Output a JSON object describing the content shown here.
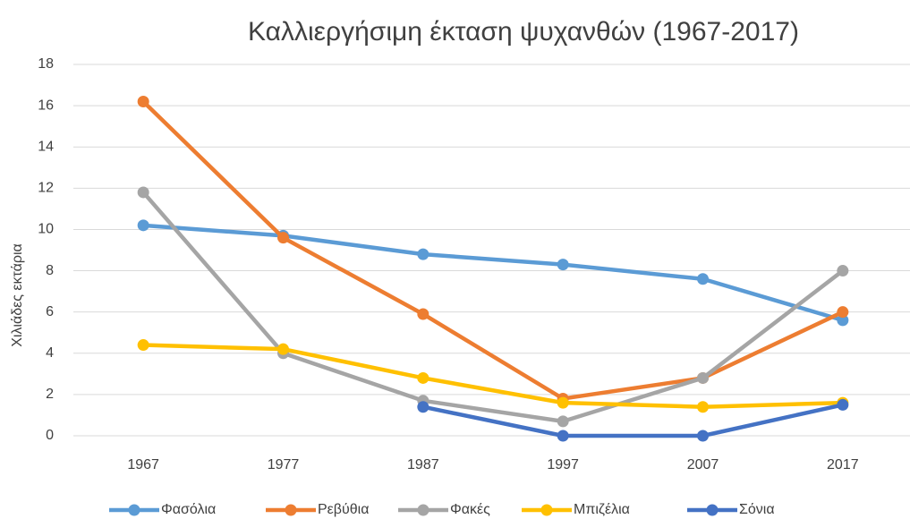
{
  "chart_data": {
    "type": "line",
    "title": "Καλλιεργήσιμη έκταση ψυχανθών (1967-2017)",
    "y_label": "Χιλιάδες εκτάρια",
    "categories": [
      "1967",
      "1977",
      "1987",
      "1997",
      "2007",
      "2017"
    ],
    "series": [
      {
        "name": "Φασόλια",
        "color": "#5b9bd5",
        "values": [
          10.2,
          9.7,
          8.8,
          8.3,
          7.6,
          5.6
        ]
      },
      {
        "name": "Ρεβύθια",
        "color": "#ed7d31",
        "values": [
          16.2,
          9.6,
          5.9,
          1.8,
          2.8,
          6.0
        ]
      },
      {
        "name": "Φακές",
        "color": "#a5a5a5",
        "values": [
          11.8,
          4.0,
          1.7,
          0.7,
          2.8,
          8.0
        ]
      },
      {
        "name": "Μπιζέλια",
        "color": "#ffc000",
        "values": [
          4.4,
          4.2,
          2.8,
          1.6,
          1.4,
          1.6
        ]
      },
      {
        "name": "Σόνια",
        "color": "#4472c4",
        "values": [
          null,
          null,
          1.4,
          0,
          0,
          1.5
        ]
      }
    ],
    "ylim": [
      0,
      18
    ],
    "yticks": [
      0,
      2,
      4,
      6,
      8,
      10,
      12,
      14,
      16,
      18
    ],
    "grid": true,
    "legend": "bottom"
  }
}
